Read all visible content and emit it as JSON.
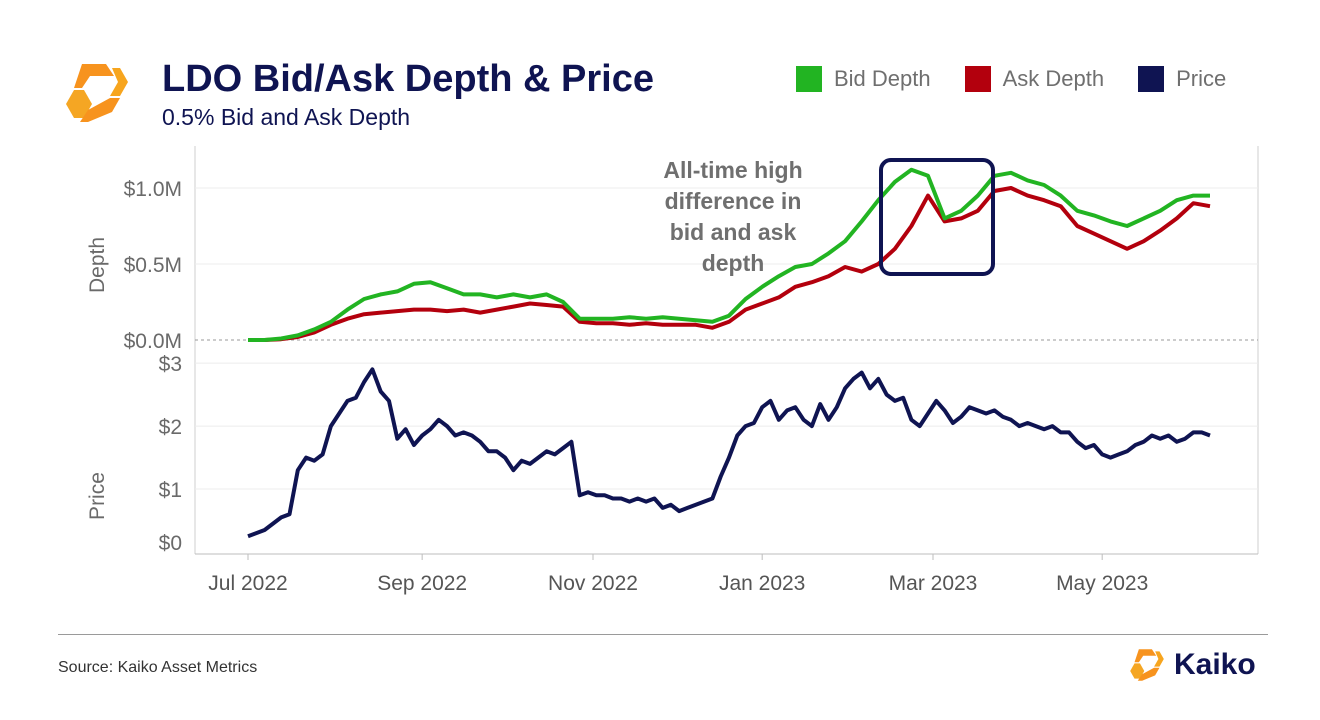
{
  "header": {
    "title": "LDO Bid/Ask Depth & Price",
    "subtitle": "0.5% Bid and Ask Depth"
  },
  "colors": {
    "bid": "#22b422",
    "ask": "#b3000d",
    "price": "#0f1452",
    "logo": "#f7931e"
  },
  "footer": {
    "source": "Source: Kaiko Asset Metrics",
    "brand": "Kaiko"
  },
  "chart_data": {
    "type": "line",
    "legend": [
      {
        "name": "Bid Depth",
        "color": "#22b422"
      },
      {
        "name": "Ask Depth",
        "color": "#b3000d"
      },
      {
        "name": "Price",
        "color": "#0f1452"
      }
    ],
    "legend_position": "top-right",
    "x_ticks": [
      "Jul 2022",
      "Sep 2022",
      "Nov 2022",
      "Jan 2023",
      "Mar 2023",
      "May 2023"
    ],
    "annotation": [
      "All-time high",
      "difference in",
      "bid and ask",
      "depth"
    ],
    "depth_panel": {
      "ylabel": "Depth",
      "ylim": [
        0,
        1.25
      ],
      "ticks": [
        "$0.0M",
        "$0.5M",
        "$1.0M"
      ],
      "tick_values": [
        0,
        0.5,
        1.0
      ],
      "bid": [
        [
          0,
          0.0
        ],
        [
          10,
          0.0
        ],
        [
          20,
          0.01
        ],
        [
          30,
          0.03
        ],
        [
          40,
          0.07
        ],
        [
          50,
          0.12
        ],
        [
          60,
          0.2
        ],
        [
          70,
          0.27
        ],
        [
          80,
          0.3
        ],
        [
          90,
          0.32
        ],
        [
          100,
          0.37
        ],
        [
          110,
          0.38
        ],
        [
          120,
          0.34
        ],
        [
          130,
          0.3
        ],
        [
          140,
          0.3
        ],
        [
          150,
          0.28
        ],
        [
          160,
          0.3
        ],
        [
          170,
          0.28
        ],
        [
          180,
          0.3
        ],
        [
          190,
          0.25
        ],
        [
          200,
          0.14
        ],
        [
          210,
          0.14
        ],
        [
          220,
          0.14
        ],
        [
          230,
          0.15
        ],
        [
          240,
          0.14
        ],
        [
          250,
          0.15
        ],
        [
          260,
          0.14
        ],
        [
          270,
          0.13
        ],
        [
          280,
          0.12
        ],
        [
          290,
          0.16
        ],
        [
          300,
          0.27
        ],
        [
          310,
          0.35
        ],
        [
          320,
          0.42
        ],
        [
          330,
          0.48
        ],
        [
          340,
          0.5
        ],
        [
          350,
          0.57
        ],
        [
          360,
          0.65
        ],
        [
          370,
          0.78
        ],
        [
          380,
          0.92
        ],
        [
          390,
          1.04
        ],
        [
          400,
          1.12
        ],
        [
          410,
          1.08
        ],
        [
          420,
          0.8
        ],
        [
          430,
          0.85
        ],
        [
          440,
          0.95
        ],
        [
          450,
          1.08
        ],
        [
          460,
          1.1
        ],
        [
          470,
          1.05
        ],
        [
          480,
          1.02
        ],
        [
          490,
          0.95
        ],
        [
          500,
          0.85
        ],
        [
          510,
          0.82
        ],
        [
          520,
          0.78
        ],
        [
          530,
          0.75
        ],
        [
          540,
          0.8
        ],
        [
          550,
          0.85
        ],
        [
          560,
          0.92
        ],
        [
          570,
          0.95
        ],
        [
          580,
          0.95
        ]
      ],
      "ask": [
        [
          0,
          0.0
        ],
        [
          10,
          0.0
        ],
        [
          20,
          0.005
        ],
        [
          30,
          0.02
        ],
        [
          40,
          0.05
        ],
        [
          50,
          0.1
        ],
        [
          60,
          0.14
        ],
        [
          70,
          0.17
        ],
        [
          80,
          0.18
        ],
        [
          90,
          0.19
        ],
        [
          100,
          0.2
        ],
        [
          110,
          0.2
        ],
        [
          120,
          0.19
        ],
        [
          130,
          0.2
        ],
        [
          140,
          0.18
        ],
        [
          150,
          0.2
        ],
        [
          160,
          0.22
        ],
        [
          170,
          0.24
        ],
        [
          180,
          0.23
        ],
        [
          190,
          0.22
        ],
        [
          200,
          0.12
        ],
        [
          210,
          0.11
        ],
        [
          220,
          0.11
        ],
        [
          230,
          0.1
        ],
        [
          240,
          0.11
        ],
        [
          250,
          0.1
        ],
        [
          260,
          0.1
        ],
        [
          270,
          0.1
        ],
        [
          280,
          0.08
        ],
        [
          290,
          0.12
        ],
        [
          300,
          0.2
        ],
        [
          310,
          0.24
        ],
        [
          320,
          0.28
        ],
        [
          330,
          0.35
        ],
        [
          340,
          0.38
        ],
        [
          350,
          0.42
        ],
        [
          360,
          0.48
        ],
        [
          370,
          0.45
        ],
        [
          380,
          0.5
        ],
        [
          390,
          0.6
        ],
        [
          400,
          0.75
        ],
        [
          410,
          0.95
        ],
        [
          420,
          0.78
        ],
        [
          430,
          0.8
        ],
        [
          440,
          0.85
        ],
        [
          450,
          0.98
        ],
        [
          460,
          1.0
        ],
        [
          470,
          0.95
        ],
        [
          480,
          0.92
        ],
        [
          490,
          0.88
        ],
        [
          500,
          0.75
        ],
        [
          510,
          0.7
        ],
        [
          520,
          0.65
        ],
        [
          530,
          0.6
        ],
        [
          540,
          0.65
        ],
        [
          550,
          0.72
        ],
        [
          560,
          0.8
        ],
        [
          570,
          0.9
        ],
        [
          580,
          0.88
        ]
      ]
    },
    "price_panel": {
      "ylabel": "Price",
      "ylim": [
        0,
        3.05
      ],
      "ticks": [
        "$0",
        "$1",
        "$2",
        "$3"
      ],
      "tick_values": [
        0,
        1,
        2,
        3
      ],
      "price": [
        [
          0,
          0.25
        ],
        [
          10,
          0.35
        ],
        [
          20,
          0.55
        ],
        [
          25,
          0.6
        ],
        [
          30,
          1.3
        ],
        [
          35,
          1.5
        ],
        [
          40,
          1.45
        ],
        [
          45,
          1.55
        ],
        [
          50,
          2.0
        ],
        [
          55,
          2.2
        ],
        [
          60,
          2.4
        ],
        [
          65,
          2.45
        ],
        [
          70,
          2.7
        ],
        [
          75,
          2.9
        ],
        [
          80,
          2.55
        ],
        [
          85,
          2.4
        ],
        [
          90,
          1.8
        ],
        [
          95,
          1.95
        ],
        [
          100,
          1.7
        ],
        [
          105,
          1.85
        ],
        [
          110,
          1.95
        ],
        [
          115,
          2.1
        ],
        [
          120,
          2.0
        ],
        [
          125,
          1.85
        ],
        [
          130,
          1.9
        ],
        [
          135,
          1.85
        ],
        [
          140,
          1.75
        ],
        [
          145,
          1.6
        ],
        [
          150,
          1.6
        ],
        [
          155,
          1.5
        ],
        [
          160,
          1.3
        ],
        [
          165,
          1.45
        ],
        [
          170,
          1.4
        ],
        [
          175,
          1.5
        ],
        [
          180,
          1.6
        ],
        [
          185,
          1.55
        ],
        [
          190,
          1.65
        ],
        [
          195,
          1.75
        ],
        [
          200,
          0.9
        ],
        [
          205,
          0.95
        ],
        [
          210,
          0.9
        ],
        [
          215,
          0.9
        ],
        [
          220,
          0.85
        ],
        [
          225,
          0.85
        ],
        [
          230,
          0.8
        ],
        [
          235,
          0.85
        ],
        [
          240,
          0.8
        ],
        [
          245,
          0.85
        ],
        [
          250,
          0.7
        ],
        [
          255,
          0.75
        ],
        [
          260,
          0.65
        ],
        [
          265,
          0.7
        ],
        [
          270,
          0.75
        ],
        [
          275,
          0.8
        ],
        [
          280,
          0.85
        ],
        [
          285,
          1.2
        ],
        [
          290,
          1.5
        ],
        [
          295,
          1.85
        ],
        [
          300,
          2.0
        ],
        [
          305,
          2.05
        ],
        [
          310,
          2.3
        ],
        [
          315,
          2.4
        ],
        [
          320,
          2.1
        ],
        [
          325,
          2.25
        ],
        [
          330,
          2.3
        ],
        [
          335,
          2.1
        ],
        [
          340,
          2.0
        ],
        [
          345,
          2.35
        ],
        [
          350,
          2.1
        ],
        [
          355,
          2.3
        ],
        [
          360,
          2.6
        ],
        [
          365,
          2.75
        ],
        [
          370,
          2.85
        ],
        [
          375,
          2.6
        ],
        [
          380,
          2.75
        ],
        [
          385,
          2.5
        ],
        [
          390,
          2.4
        ],
        [
          395,
          2.45
        ],
        [
          400,
          2.1
        ],
        [
          405,
          2.0
        ],
        [
          410,
          2.2
        ],
        [
          415,
          2.4
        ],
        [
          420,
          2.25
        ],
        [
          425,
          2.05
        ],
        [
          430,
          2.15
        ],
        [
          435,
          2.3
        ],
        [
          440,
          2.25
        ],
        [
          445,
          2.2
        ],
        [
          450,
          2.25
        ],
        [
          455,
          2.15
        ],
        [
          460,
          2.1
        ],
        [
          465,
          2.0
        ],
        [
          470,
          2.05
        ],
        [
          475,
          2.0
        ],
        [
          480,
          1.95
        ],
        [
          485,
          2.0
        ],
        [
          490,
          1.9
        ],
        [
          495,
          1.9
        ],
        [
          500,
          1.75
        ],
        [
          505,
          1.65
        ],
        [
          510,
          1.7
        ],
        [
          515,
          1.55
        ],
        [
          520,
          1.5
        ],
        [
          525,
          1.55
        ],
        [
          530,
          1.6
        ],
        [
          535,
          1.7
        ],
        [
          540,
          1.75
        ],
        [
          545,
          1.85
        ],
        [
          550,
          1.8
        ],
        [
          555,
          1.85
        ],
        [
          560,
          1.75
        ],
        [
          565,
          1.8
        ],
        [
          570,
          1.9
        ],
        [
          575,
          1.9
        ],
        [
          580,
          1.85
        ]
      ]
    }
  }
}
